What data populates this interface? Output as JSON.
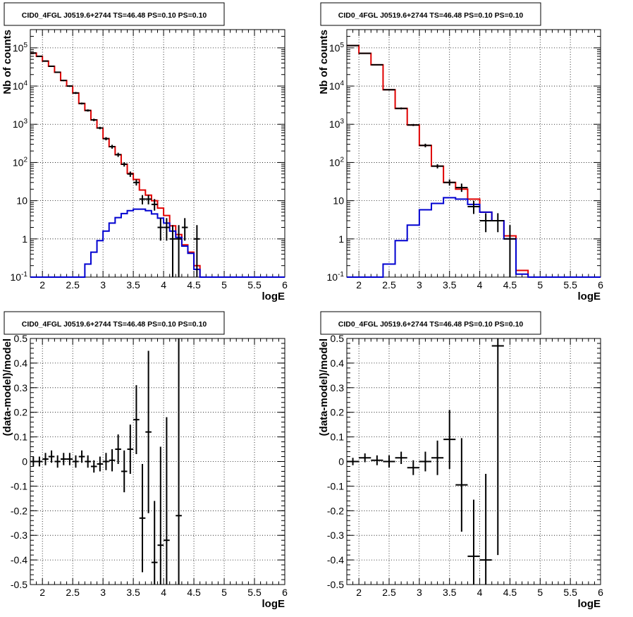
{
  "chart_data": [
    {
      "type": "histogram",
      "title": "CID0_4FGL J0519.6+2744 TS=46.48 PS=0.10 PS=0.10",
      "xlabel": "logE",
      "ylabel": "Nb of counts",
      "xlim": [
        1.8,
        6.0
      ],
      "ylim": [
        0.1,
        300000
      ],
      "yscale": "log",
      "grid": true,
      "x_ticks": [
        "2",
        "2.5",
        "3",
        "3.5",
        "4",
        "4.5",
        "5",
        "5.5",
        "6"
      ],
      "y_ticks": [
        "10^-1",
        "1",
        "10",
        "10^2",
        "10^3",
        "10^4",
        "10^5"
      ],
      "bin_edges": [
        1.8,
        1.9,
        2.0,
        2.1,
        2.2,
        2.3,
        2.4,
        2.5,
        2.6,
        2.7,
        2.8,
        2.9,
        3.0,
        3.1,
        3.2,
        3.3,
        3.4,
        3.5,
        3.6,
        3.7,
        3.8,
        3.9,
        4.0,
        4.1,
        4.2,
        4.3,
        4.4,
        4.5,
        4.6,
        4.7,
        4.8,
        4.9,
        5.0,
        5.1,
        5.2,
        5.3,
        5.4,
        5.5,
        5.6,
        5.7,
        5.8,
        5.9,
        6.0
      ],
      "series": [
        {
          "color": "#e00000",
          "values": [
            73000,
            60000,
            45000,
            33000,
            23000,
            14000,
            10000,
            6600,
            3500,
            2300,
            1300,
            800,
            420,
            260,
            160,
            90,
            52,
            36,
            19,
            14,
            10,
            6.4,
            4.1,
            2.2,
            1.3,
            0.7,
            0.45,
            0.2,
            0.1,
            0.1,
            0.1,
            0.1,
            0.1,
            0.1,
            0.1,
            0.1,
            0.1,
            0.1,
            0.1,
            0.1,
            0.1,
            0.1
          ]
        },
        {
          "color": "#0000d0",
          "values": [
            0.1,
            0.1,
            0.1,
            0.1,
            0.1,
            0.1,
            0.1,
            0.1,
            0.1,
            0.22,
            0.45,
            0.9,
            1.6,
            2.6,
            3.6,
            4.6,
            5.5,
            6.0,
            6.0,
            5.5,
            4.5,
            3.5,
            2.6,
            1.6,
            1.1,
            0.65,
            0.42,
            0.16,
            0.1,
            0.1,
            0.1,
            0.1,
            0.1,
            0.1,
            0.1,
            0.1,
            0.1,
            0.1,
            0.1,
            0.1,
            0.1,
            0.1
          ]
        }
      ],
      "points": [
        {
          "x": 1.85,
          "y": 73000,
          "lo": 71000,
          "hi": 75000
        },
        {
          "x": 1.95,
          "y": 60000,
          "lo": 58500,
          "hi": 61500
        },
        {
          "x": 2.05,
          "y": 45000,
          "lo": 43500,
          "hi": 46500
        },
        {
          "x": 2.15,
          "y": 33000,
          "lo": 32000,
          "hi": 34000
        },
        {
          "x": 2.25,
          "y": 23000,
          "lo": 22200,
          "hi": 23800
        },
        {
          "x": 2.35,
          "y": 14000,
          "lo": 13400,
          "hi": 14600
        },
        {
          "x": 2.45,
          "y": 10000,
          "lo": 9500,
          "hi": 10500
        },
        {
          "x": 2.55,
          "y": 6600,
          "lo": 6200,
          "hi": 7000
        },
        {
          "x": 2.65,
          "y": 3500,
          "lo": 3300,
          "hi": 3700
        },
        {
          "x": 2.75,
          "y": 2300,
          "lo": 2150,
          "hi": 2450
        },
        {
          "x": 2.85,
          "y": 1300,
          "lo": 1200,
          "hi": 1400
        },
        {
          "x": 2.95,
          "y": 800,
          "lo": 740,
          "hi": 860
        },
        {
          "x": 3.05,
          "y": 420,
          "lo": 380,
          "hi": 460
        },
        {
          "x": 3.15,
          "y": 260,
          "lo": 230,
          "hi": 290
        },
        {
          "x": 3.25,
          "y": 160,
          "lo": 140,
          "hi": 180
        },
        {
          "x": 3.35,
          "y": 90,
          "lo": 78,
          "hi": 102
        },
        {
          "x": 3.45,
          "y": 50,
          "lo": 42,
          "hi": 58
        },
        {
          "x": 3.55,
          "y": 30,
          "lo": 25,
          "hi": 36
        },
        {
          "x": 3.65,
          "y": 11,
          "lo": 8,
          "hi": 14
        },
        {
          "x": 3.75,
          "y": 11,
          "lo": 8,
          "hi": 14
        },
        {
          "x": 3.85,
          "y": 8,
          "lo": 5.5,
          "hi": 11
        },
        {
          "x": 3.95,
          "y": 2,
          "lo": 0.9,
          "hi": 3.5
        },
        {
          "x": 4.05,
          "y": 2,
          "lo": 0.9,
          "hi": 3.5
        },
        {
          "x": 4.15,
          "y": 1,
          "lo": 0.1,
          "hi": 2.3
        },
        {
          "x": 4.25,
          "y": 1,
          "lo": 0.1,
          "hi": 2.3
        },
        {
          "x": 4.35,
          "y": 2,
          "lo": 0.9,
          "hi": 3.5
        },
        {
          "x": 4.55,
          "y": 1,
          "lo": 0.1,
          "hi": 2.3
        }
      ]
    },
    {
      "type": "histogram",
      "title": "CID0_4FGL J0519.6+2744 TS=46.48 PS=0.10 PS=0.10",
      "xlabel": "logE",
      "ylabel": "Nb of counts",
      "xlim": [
        1.8,
        6.0
      ],
      "ylim": [
        0.1,
        300000
      ],
      "yscale": "log",
      "grid": true,
      "x_ticks": [
        "2",
        "2.5",
        "3",
        "3.5",
        "4",
        "4.5",
        "5",
        "5.5",
        "6"
      ],
      "y_ticks": [
        "10^-1",
        "1",
        "10",
        "10^2",
        "10^3",
        "10^4",
        "10^5"
      ],
      "bin_edges": [
        1.8,
        2.0,
        2.2,
        2.4,
        2.6,
        2.8,
        3.0,
        3.2,
        3.4,
        3.6,
        3.8,
        4.0,
        4.2,
        4.4,
        4.6,
        4.8,
        5.0,
        5.2,
        5.4,
        5.6,
        5.8,
        6.0
      ],
      "series": [
        {
          "color": "#e00000",
          "values": [
            115000,
            72000,
            36000,
            8000,
            2600,
            960,
            280,
            80,
            30,
            20,
            11,
            5,
            3,
            1.2,
            0.15,
            0.1,
            0.1,
            0.1,
            0.1,
            0.1,
            0.1
          ]
        },
        {
          "color": "#0000d0",
          "values": [
            0.1,
            0.1,
            0.1,
            0.22,
            0.9,
            2.3,
            5.8,
            8.5,
            12,
            11,
            8,
            5,
            3,
            1,
            0.12,
            0.1,
            0.1,
            0.1,
            0.1,
            0.1,
            0.1
          ]
        }
      ],
      "points": [
        {
          "x": 1.9,
          "y": 115000,
          "lo": 113000,
          "hi": 117000
        },
        {
          "x": 2.1,
          "y": 72000,
          "lo": 70500,
          "hi": 73500
        },
        {
          "x": 2.3,
          "y": 36000,
          "lo": 35000,
          "hi": 37000
        },
        {
          "x": 2.5,
          "y": 8000,
          "lo": 7600,
          "hi": 8400
        },
        {
          "x": 2.7,
          "y": 2600,
          "lo": 2450,
          "hi": 2750
        },
        {
          "x": 2.9,
          "y": 960,
          "lo": 900,
          "hi": 1020
        },
        {
          "x": 3.1,
          "y": 280,
          "lo": 250,
          "hi": 310
        },
        {
          "x": 3.3,
          "y": 80,
          "lo": 70,
          "hi": 90
        },
        {
          "x": 3.5,
          "y": 30,
          "lo": 25,
          "hi": 36
        },
        {
          "x": 3.7,
          "y": 22,
          "lo": 17,
          "hi": 28
        },
        {
          "x": 3.9,
          "y": 7,
          "lo": 4.5,
          "hi": 10
        },
        {
          "x": 4.1,
          "y": 3,
          "lo": 1.5,
          "hi": 4.7
        },
        {
          "x": 4.3,
          "y": 3,
          "lo": 1.5,
          "hi": 4.7
        },
        {
          "x": 4.5,
          "y": 1,
          "lo": 0.1,
          "hi": 2.3
        }
      ]
    },
    {
      "type": "errorbar",
      "title": "CID0_4FGL J0519.6+2744 TS=46.48 PS=0.10 PS=0.10",
      "xlabel": "logE",
      "ylabel": "(data-model)/model",
      "xlim": [
        1.8,
        6.0
      ],
      "ylim": [
        -0.5,
        0.5
      ],
      "grid": true,
      "x_ticks": [
        "2",
        "2.5",
        "3",
        "3.5",
        "4",
        "4.5",
        "5",
        "5.5",
        "6"
      ],
      "y_ticks": [
        "-0.5",
        "-0.4",
        "-0.3",
        "-0.2",
        "-0.1",
        "0",
        "0.1",
        "0.2",
        "0.3",
        "0.4",
        "0.5"
      ],
      "bin_width": 0.1,
      "points": [
        {
          "x": 1.85,
          "y": 0.0,
          "err": 0.02
        },
        {
          "x": 1.95,
          "y": 0.0,
          "err": 0.02
        },
        {
          "x": 2.05,
          "y": 0.01,
          "err": 0.025
        },
        {
          "x": 2.15,
          "y": 0.02,
          "err": 0.025
        },
        {
          "x": 2.25,
          "y": 0.0,
          "err": 0.025
        },
        {
          "x": 2.35,
          "y": 0.01,
          "err": 0.025
        },
        {
          "x": 2.45,
          "y": 0.01,
          "err": 0.025
        },
        {
          "x": 2.55,
          "y": 0.0,
          "err": 0.025
        },
        {
          "x": 2.65,
          "y": 0.02,
          "err": 0.025
        },
        {
          "x": 2.75,
          "y": 0.0,
          "err": 0.025
        },
        {
          "x": 2.85,
          "y": -0.02,
          "err": 0.025
        },
        {
          "x": 2.95,
          "y": -0.01,
          "err": 0.03
        },
        {
          "x": 3.05,
          "y": 0.0,
          "err": 0.035
        },
        {
          "x": 3.15,
          "y": 0.005,
          "err": 0.045
        },
        {
          "x": 3.25,
          "y": 0.05,
          "err": 0.06
        },
        {
          "x": 3.35,
          "y": -0.04,
          "err": 0.085
        },
        {
          "x": 3.45,
          "y": 0.05,
          "err": 0.1
        },
        {
          "x": 3.55,
          "y": 0.17,
          "err": 0.14
        },
        {
          "x": 3.65,
          "y": -0.23,
          "err": 0.22
        },
        {
          "x": 3.75,
          "y": 0.12,
          "err": 0.33
        },
        {
          "x": 3.85,
          "y": -0.41,
          "err": 0.25
        },
        {
          "x": 3.95,
          "y": -0.34,
          "err": 0.4
        },
        {
          "x": 4.05,
          "y": -0.32,
          "err": 0.5
        },
        {
          "x": 4.25,
          "y": -0.22,
          "err": 0.8
        }
      ]
    },
    {
      "type": "errorbar",
      "title": "CID0_4FGL J0519.6+2744 TS=46.48 PS=0.10 PS=0.10",
      "xlabel": "logE",
      "ylabel": "(data-model)/model",
      "xlim": [
        1.8,
        6.0
      ],
      "ylim": [
        -0.5,
        0.5
      ],
      "grid": true,
      "x_ticks": [
        "2",
        "2.5",
        "3",
        "3.5",
        "4",
        "4.5",
        "5",
        "5.5",
        "6"
      ],
      "y_ticks": [
        "-0.5",
        "-0.4",
        "-0.3",
        "-0.2",
        "-0.1",
        "0",
        "0.1",
        "0.2",
        "0.3",
        "0.4",
        "0.5"
      ],
      "bin_width": 0.2,
      "points": [
        {
          "x": 1.9,
          "y": 0.0,
          "err": 0.015
        },
        {
          "x": 2.1,
          "y": 0.015,
          "err": 0.018
        },
        {
          "x": 2.3,
          "y": 0.005,
          "err": 0.02
        },
        {
          "x": 2.5,
          "y": 0.0,
          "err": 0.025
        },
        {
          "x": 2.7,
          "y": 0.015,
          "err": 0.025
        },
        {
          "x": 2.9,
          "y": -0.025,
          "err": 0.03
        },
        {
          "x": 3.1,
          "y": 0.0,
          "err": 0.04
        },
        {
          "x": 3.3,
          "y": 0.015,
          "err": 0.07
        },
        {
          "x": 3.5,
          "y": 0.09,
          "err": 0.12
        },
        {
          "x": 3.7,
          "y": -0.095,
          "err": 0.19
        },
        {
          "x": 3.9,
          "y": -0.385,
          "err": 0.23
        },
        {
          "x": 4.1,
          "y": -0.4,
          "err": 0.35
        },
        {
          "x": 4.3,
          "y": 0.47,
          "err": 0.85
        }
      ]
    }
  ]
}
